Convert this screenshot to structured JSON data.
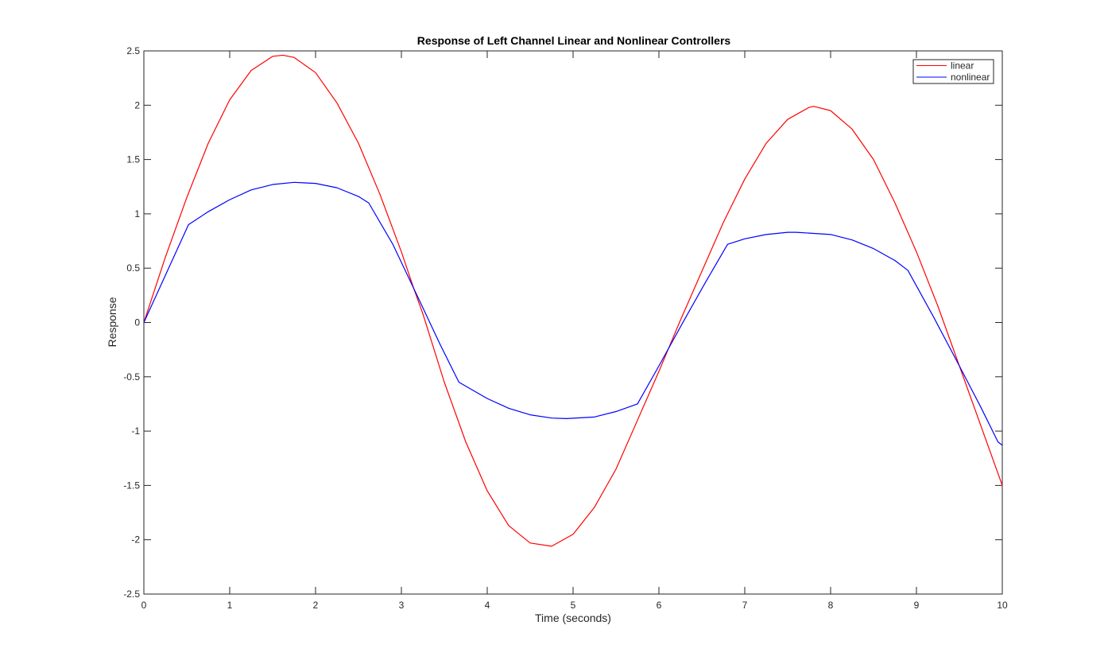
{
  "chart_data": {
    "type": "line",
    "title": "Response of Left Channel Linear and Nonlinear Controllers",
    "xlabel": "Time (seconds)",
    "ylabel": "Response",
    "xlim": [
      0,
      10
    ],
    "ylim": [
      -2.5,
      2.5
    ],
    "xticks": [
      "0",
      "1",
      "2",
      "3",
      "4",
      "5",
      "6",
      "7",
      "8",
      "9",
      "10"
    ],
    "yticks": [
      "2.5",
      "2",
      "1.5",
      "1",
      "0.5",
      "0",
      "-0.5",
      "-1",
      "-1.5",
      "-2",
      "-2.5"
    ],
    "legend_position": "top-right",
    "grid": false,
    "series": [
      {
        "name": "linear",
        "color": "#ff0000",
        "points": [
          [
            0,
            0
          ],
          [
            0.25,
            0.6
          ],
          [
            0.5,
            1.15
          ],
          [
            0.75,
            1.65
          ],
          [
            1.0,
            2.05
          ],
          [
            1.25,
            2.32
          ],
          [
            1.5,
            2.45
          ],
          [
            1.62,
            2.46
          ],
          [
            1.75,
            2.44
          ],
          [
            2.0,
            2.3
          ],
          [
            2.25,
            2.02
          ],
          [
            2.5,
            1.65
          ],
          [
            2.75,
            1.18
          ],
          [
            3.0,
            0.65
          ],
          [
            3.15,
            0.3
          ],
          [
            3.25,
            0.08
          ],
          [
            3.5,
            -0.55
          ],
          [
            3.75,
            -1.1
          ],
          [
            4.0,
            -1.55
          ],
          [
            4.25,
            -1.87
          ],
          [
            4.5,
            -2.03
          ],
          [
            4.75,
            -2.06
          ],
          [
            5.0,
            -1.95
          ],
          [
            5.25,
            -1.7
          ],
          [
            5.5,
            -1.35
          ],
          [
            5.75,
            -0.9
          ],
          [
            6.0,
            -0.45
          ],
          [
            6.25,
            0.02
          ],
          [
            6.5,
            0.47
          ],
          [
            6.75,
            0.92
          ],
          [
            7.0,
            1.32
          ],
          [
            7.25,
            1.65
          ],
          [
            7.5,
            1.87
          ],
          [
            7.75,
            1.98
          ],
          [
            7.8,
            1.99
          ],
          [
            8.0,
            1.95
          ],
          [
            8.25,
            1.78
          ],
          [
            8.5,
            1.5
          ],
          [
            8.75,
            1.1
          ],
          [
            9.0,
            0.65
          ],
          [
            9.25,
            0.15
          ],
          [
            9.5,
            -0.4
          ],
          [
            9.75,
            -0.95
          ],
          [
            10.0,
            -1.5
          ]
        ]
      },
      {
        "name": "nonlinear",
        "color": "#0000ff",
        "points": [
          [
            0,
            0
          ],
          [
            0.52,
            0.9
          ],
          [
            0.75,
            1.02
          ],
          [
            1.0,
            1.13
          ],
          [
            1.25,
            1.22
          ],
          [
            1.5,
            1.27
          ],
          [
            1.75,
            1.29
          ],
          [
            2.0,
            1.28
          ],
          [
            2.25,
            1.24
          ],
          [
            2.5,
            1.16
          ],
          [
            2.62,
            1.1
          ],
          [
            2.9,
            0.72
          ],
          [
            3.2,
            0.22
          ],
          [
            3.45,
            -0.2
          ],
          [
            3.67,
            -0.55
          ],
          [
            4.0,
            -0.7
          ],
          [
            4.25,
            -0.79
          ],
          [
            4.5,
            -0.85
          ],
          [
            4.75,
            -0.88
          ],
          [
            4.92,
            -0.885
          ],
          [
            5.25,
            -0.87
          ],
          [
            5.5,
            -0.82
          ],
          [
            5.75,
            -0.75
          ],
          [
            6.0,
            -0.4
          ],
          [
            6.3,
            0.03
          ],
          [
            6.55,
            0.38
          ],
          [
            6.8,
            0.72
          ],
          [
            7.0,
            0.77
          ],
          [
            7.25,
            0.81
          ],
          [
            7.5,
            0.83
          ],
          [
            7.6,
            0.83
          ],
          [
            8.0,
            0.81
          ],
          [
            8.25,
            0.76
          ],
          [
            8.5,
            0.68
          ],
          [
            8.75,
            0.57
          ],
          [
            8.9,
            0.48
          ],
          [
            9.2,
            0.05
          ],
          [
            9.5,
            -0.4
          ],
          [
            9.75,
            -0.78
          ],
          [
            9.95,
            -1.1
          ],
          [
            10.0,
            -1.13
          ]
        ]
      }
    ]
  }
}
